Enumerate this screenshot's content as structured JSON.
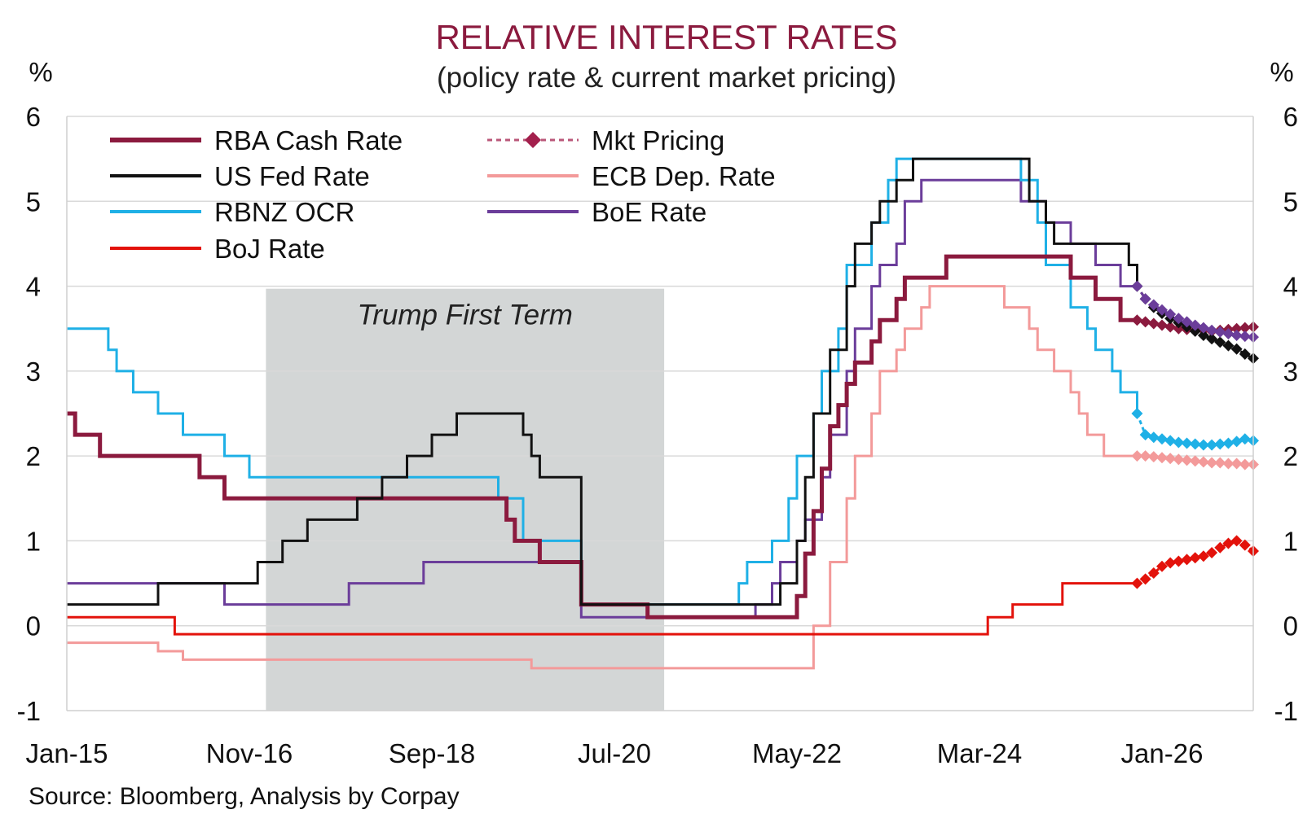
{
  "chart_data": {
    "type": "line",
    "title": "RELATIVE INTEREST RATES",
    "subtitle": "(policy rate & current market pricing)",
    "ylabel_left": "%",
    "ylabel_right": "%",
    "ylim": [
      -1,
      6
    ],
    "y_ticks": [
      "6",
      "5",
      "4",
      "3",
      "2",
      "1",
      "0",
      "-1"
    ],
    "xlim": [
      "2015-01",
      "2026-12"
    ],
    "x_ticks": [
      {
        "label": "Jan-15",
        "date": "2015-01"
      },
      {
        "label": "Nov-16",
        "date": "2016-11"
      },
      {
        "label": "Sep-18",
        "date": "2018-09"
      },
      {
        "label": "Jul-20",
        "date": "2020-07"
      },
      {
        "label": "May-22",
        "date": "2022-05"
      },
      {
        "label": "Mar-24",
        "date": "2024-03"
      },
      {
        "label": "Jan-26",
        "date": "2026-01"
      }
    ],
    "grid": "horizontal",
    "legend_position": "top-left",
    "shaded_region": {
      "label": "Trump First Term",
      "start": "2017-01",
      "end": "2021-01"
    },
    "source": "Source: Bloomberg, Analysis by Corpay",
    "legend": [
      {
        "name": "RBA Cash Rate",
        "color": "#8b1a3e",
        "style": "line"
      },
      {
        "name": "US Fed Rate",
        "color": "#111111",
        "style": "line"
      },
      {
        "name": "RBNZ OCR",
        "color": "#1fb0e6",
        "style": "line"
      },
      {
        "name": "BoJ Rate",
        "color": "#e3120b",
        "style": "line"
      },
      {
        "name": "Mkt Pricing",
        "color": "#a3204d",
        "style": "dashed-diamond"
      },
      {
        "name": "ECB Dep. Rate",
        "color": "#f39a9a",
        "style": "line"
      },
      {
        "name": "BoE Rate",
        "color": "#6b3d9a",
        "style": "line"
      }
    ],
    "series": [
      {
        "name": "RBA Cash Rate",
        "color": "#8b1a3e",
        "width": 5,
        "points": [
          [
            "2015-01",
            2.5
          ],
          [
            "2015-02",
            2.25
          ],
          [
            "2015-05",
            2.0
          ],
          [
            "2016-05",
            1.75
          ],
          [
            "2016-08",
            1.5
          ],
          [
            "2019-06",
            1.25
          ],
          [
            "2019-07",
            1.0
          ],
          [
            "2019-10",
            0.75
          ],
          [
            "2020-03",
            0.25
          ],
          [
            "2020-11",
            0.1
          ],
          [
            "2022-05",
            0.35
          ],
          [
            "2022-06",
            0.85
          ],
          [
            "2022-07",
            1.35
          ],
          [
            "2022-08",
            1.85
          ],
          [
            "2022-09",
            2.35
          ],
          [
            "2022-10",
            2.6
          ],
          [
            "2022-11",
            2.85
          ],
          [
            "2022-12",
            3.1
          ],
          [
            "2023-02",
            3.35
          ],
          [
            "2023-03",
            3.6
          ],
          [
            "2023-05",
            3.85
          ],
          [
            "2023-06",
            4.1
          ],
          [
            "2023-11",
            4.35
          ],
          [
            "2025-02",
            4.1
          ],
          [
            "2025-05",
            3.85
          ],
          [
            "2025-08",
            3.6
          ],
          [
            "2025-10",
            3.6
          ]
        ]
      },
      {
        "name": "US Fed Rate",
        "color": "#111111",
        "width": 3,
        "points": [
          [
            "2015-01",
            0.25
          ],
          [
            "2015-12",
            0.5
          ],
          [
            "2016-12",
            0.75
          ],
          [
            "2017-03",
            1.0
          ],
          [
            "2017-06",
            1.25
          ],
          [
            "2017-12",
            1.5
          ],
          [
            "2018-03",
            1.75
          ],
          [
            "2018-06",
            2.0
          ],
          [
            "2018-09",
            2.25
          ],
          [
            "2018-12",
            2.5
          ],
          [
            "2019-08",
            2.25
          ],
          [
            "2019-09",
            2.0
          ],
          [
            "2019-10",
            1.75
          ],
          [
            "2020-03",
            0.25
          ],
          [
            "2022-03",
            0.5
          ],
          [
            "2022-05",
            1.0
          ],
          [
            "2022-06",
            1.75
          ],
          [
            "2022-07",
            2.5
          ],
          [
            "2022-09",
            3.25
          ],
          [
            "2022-11",
            4.0
          ],
          [
            "2022-12",
            4.5
          ],
          [
            "2023-02",
            4.75
          ],
          [
            "2023-03",
            5.0
          ],
          [
            "2023-05",
            5.25
          ],
          [
            "2023-07",
            5.5
          ],
          [
            "2024-09",
            5.0
          ],
          [
            "2024-11",
            4.75
          ],
          [
            "2024-12",
            4.5
          ],
          [
            "2025-09",
            4.25
          ],
          [
            "2025-10",
            4.0
          ]
        ]
      },
      {
        "name": "RBNZ OCR",
        "color": "#1fb0e6",
        "width": 3,
        "points": [
          [
            "2015-01",
            3.5
          ],
          [
            "2015-06",
            3.25
          ],
          [
            "2015-07",
            3.0
          ],
          [
            "2015-09",
            2.75
          ],
          [
            "2015-12",
            2.5
          ],
          [
            "2016-03",
            2.25
          ],
          [
            "2016-08",
            2.0
          ],
          [
            "2016-11",
            1.75
          ],
          [
            "2019-05",
            1.5
          ],
          [
            "2019-08",
            1.0
          ],
          [
            "2020-03",
            0.25
          ],
          [
            "2021-10",
            0.5
          ],
          [
            "2021-11",
            0.75
          ],
          [
            "2022-02",
            1.0
          ],
          [
            "2022-04",
            1.5
          ],
          [
            "2022-05",
            2.0
          ],
          [
            "2022-07",
            2.5
          ],
          [
            "2022-08",
            3.0
          ],
          [
            "2022-10",
            3.5
          ],
          [
            "2022-11",
            4.25
          ],
          [
            "2023-02",
            4.75
          ],
          [
            "2023-04",
            5.25
          ],
          [
            "2023-05",
            5.5
          ],
          [
            "2024-08",
            5.25
          ],
          [
            "2024-10",
            4.75
          ],
          [
            "2024-11",
            4.25
          ],
          [
            "2025-02",
            3.75
          ],
          [
            "2025-04",
            3.5
          ],
          [
            "2025-05",
            3.25
          ],
          [
            "2025-07",
            3.0
          ],
          [
            "2025-08",
            2.75
          ],
          [
            "2025-10",
            2.5
          ]
        ]
      },
      {
        "name": "BoJ Rate",
        "color": "#e3120b",
        "width": 3,
        "points": [
          [
            "2015-01",
            0.1
          ],
          [
            "2016-01",
            0.1
          ],
          [
            "2016-02",
            -0.1
          ],
          [
            "2024-03",
            -0.1
          ],
          [
            "2024-04",
            0.1
          ],
          [
            "2024-07",
            0.25
          ],
          [
            "2025-01",
            0.5
          ],
          [
            "2025-10",
            0.5
          ]
        ]
      },
      {
        "name": "ECB Dep. Rate",
        "color": "#f39a9a",
        "width": 3,
        "points": [
          [
            "2015-01",
            -0.2
          ],
          [
            "2015-12",
            -0.3
          ],
          [
            "2016-03",
            -0.4
          ],
          [
            "2019-09",
            -0.5
          ],
          [
            "2022-07",
            0.0
          ],
          [
            "2022-09",
            0.75
          ],
          [
            "2022-11",
            1.5
          ],
          [
            "2022-12",
            2.0
          ],
          [
            "2023-02",
            2.5
          ],
          [
            "2023-03",
            3.0
          ],
          [
            "2023-05",
            3.25
          ],
          [
            "2023-06",
            3.5
          ],
          [
            "2023-08",
            3.75
          ],
          [
            "2023-09",
            4.0
          ],
          [
            "2024-06",
            3.75
          ],
          [
            "2024-09",
            3.5
          ],
          [
            "2024-10",
            3.25
          ],
          [
            "2024-12",
            3.0
          ],
          [
            "2025-02",
            2.75
          ],
          [
            "2025-03",
            2.5
          ],
          [
            "2025-04",
            2.25
          ],
          [
            "2025-06",
            2.0
          ],
          [
            "2025-10",
            2.0
          ]
        ]
      },
      {
        "name": "BoE Rate",
        "color": "#6b3d9a",
        "width": 3,
        "points": [
          [
            "2015-01",
            0.5
          ],
          [
            "2016-08",
            0.25
          ],
          [
            "2017-11",
            0.5
          ],
          [
            "2018-08",
            0.75
          ],
          [
            "2020-03",
            0.1
          ],
          [
            "2021-12",
            0.25
          ],
          [
            "2022-02",
            0.5
          ],
          [
            "2022-03",
            0.75
          ],
          [
            "2022-05",
            1.0
          ],
          [
            "2022-06",
            1.25
          ],
          [
            "2022-08",
            1.75
          ],
          [
            "2022-09",
            2.25
          ],
          [
            "2022-11",
            3.0
          ],
          [
            "2022-12",
            3.5
          ],
          [
            "2023-02",
            4.0
          ],
          [
            "2023-03",
            4.25
          ],
          [
            "2023-05",
            4.5
          ],
          [
            "2023-06",
            5.0
          ],
          [
            "2023-08",
            5.25
          ],
          [
            "2024-08",
            5.0
          ],
          [
            "2024-11",
            4.75
          ],
          [
            "2025-02",
            4.5
          ],
          [
            "2025-05",
            4.25
          ],
          [
            "2025-08",
            4.0
          ],
          [
            "2025-10",
            4.0
          ]
        ]
      }
    ],
    "market_pricing": [
      {
        "name": "RBA pricing",
        "color": "#8b1a3e",
        "points": [
          [
            "2025-10",
            3.6
          ],
          [
            "2025-11",
            3.58
          ],
          [
            "2025-12",
            3.56
          ],
          [
            "2026-01",
            3.54
          ],
          [
            "2026-02",
            3.52
          ],
          [
            "2026-03",
            3.5
          ],
          [
            "2026-04",
            3.49
          ],
          [
            "2026-05",
            3.48
          ],
          [
            "2026-06",
            3.48
          ],
          [
            "2026-07",
            3.47
          ],
          [
            "2026-08",
            3.48
          ],
          [
            "2026-09",
            3.49
          ],
          [
            "2026-10",
            3.5
          ],
          [
            "2026-11",
            3.51
          ],
          [
            "2026-12",
            3.52
          ]
        ]
      },
      {
        "name": "Fed pricing",
        "color": "#111111",
        "points": [
          [
            "2025-10",
            4.0
          ],
          [
            "2025-11",
            3.85
          ],
          [
            "2025-12",
            3.75
          ],
          [
            "2026-01",
            3.68
          ],
          [
            "2026-02",
            3.62
          ],
          [
            "2026-03",
            3.57
          ],
          [
            "2026-04",
            3.52
          ],
          [
            "2026-05",
            3.47
          ],
          [
            "2026-06",
            3.42
          ],
          [
            "2026-07",
            3.38
          ],
          [
            "2026-08",
            3.34
          ],
          [
            "2026-09",
            3.3
          ],
          [
            "2026-10",
            3.26
          ],
          [
            "2026-11",
            3.2
          ],
          [
            "2026-12",
            3.15
          ]
        ]
      },
      {
        "name": "RBNZ pricing",
        "color": "#1fb0e6",
        "points": [
          [
            "2025-10",
            2.5
          ],
          [
            "2025-11",
            2.25
          ],
          [
            "2025-12",
            2.22
          ],
          [
            "2026-01",
            2.2
          ],
          [
            "2026-02",
            2.18
          ],
          [
            "2026-03",
            2.16
          ],
          [
            "2026-04",
            2.15
          ],
          [
            "2026-05",
            2.14
          ],
          [
            "2026-06",
            2.13
          ],
          [
            "2026-07",
            2.13
          ],
          [
            "2026-08",
            2.14
          ],
          [
            "2026-09",
            2.15
          ],
          [
            "2026-10",
            2.17
          ],
          [
            "2026-11",
            2.2
          ],
          [
            "2026-12",
            2.18
          ]
        ]
      },
      {
        "name": "ECB pricing",
        "color": "#f39a9a",
        "points": [
          [
            "2025-10",
            2.0
          ],
          [
            "2025-11",
            2.0
          ],
          [
            "2025-12",
            1.99
          ],
          [
            "2026-01",
            1.98
          ],
          [
            "2026-02",
            1.97
          ],
          [
            "2026-03",
            1.96
          ],
          [
            "2026-04",
            1.95
          ],
          [
            "2026-05",
            1.94
          ],
          [
            "2026-06",
            1.93
          ],
          [
            "2026-07",
            1.92
          ],
          [
            "2026-08",
            1.92
          ],
          [
            "2026-09",
            1.91
          ],
          [
            "2026-10",
            1.91
          ],
          [
            "2026-11",
            1.9
          ],
          [
            "2026-12",
            1.9
          ]
        ]
      },
      {
        "name": "BoE pricing",
        "color": "#6b3d9a",
        "points": [
          [
            "2025-10",
            4.0
          ],
          [
            "2025-11",
            3.85
          ],
          [
            "2025-12",
            3.78
          ],
          [
            "2026-01",
            3.72
          ],
          [
            "2026-02",
            3.67
          ],
          [
            "2026-03",
            3.62
          ],
          [
            "2026-04",
            3.58
          ],
          [
            "2026-05",
            3.54
          ],
          [
            "2026-06",
            3.51
          ],
          [
            "2026-07",
            3.48
          ],
          [
            "2026-08",
            3.46
          ],
          [
            "2026-09",
            3.44
          ],
          [
            "2026-10",
            3.42
          ],
          [
            "2026-11",
            3.41
          ],
          [
            "2026-12",
            3.4
          ]
        ]
      },
      {
        "name": "BoJ pricing",
        "color": "#e3120b",
        "points": [
          [
            "2025-10",
            0.5
          ],
          [
            "2025-11",
            0.55
          ],
          [
            "2025-12",
            0.62
          ],
          [
            "2026-01",
            0.7
          ],
          [
            "2026-02",
            0.74
          ],
          [
            "2026-03",
            0.76
          ],
          [
            "2026-04",
            0.78
          ],
          [
            "2026-05",
            0.8
          ],
          [
            "2026-06",
            0.82
          ],
          [
            "2026-07",
            0.86
          ],
          [
            "2026-08",
            0.92
          ],
          [
            "2026-09",
            0.97
          ],
          [
            "2026-10",
            1.0
          ],
          [
            "2026-11",
            0.95
          ],
          [
            "2026-12",
            0.88
          ]
        ]
      }
    ]
  }
}
